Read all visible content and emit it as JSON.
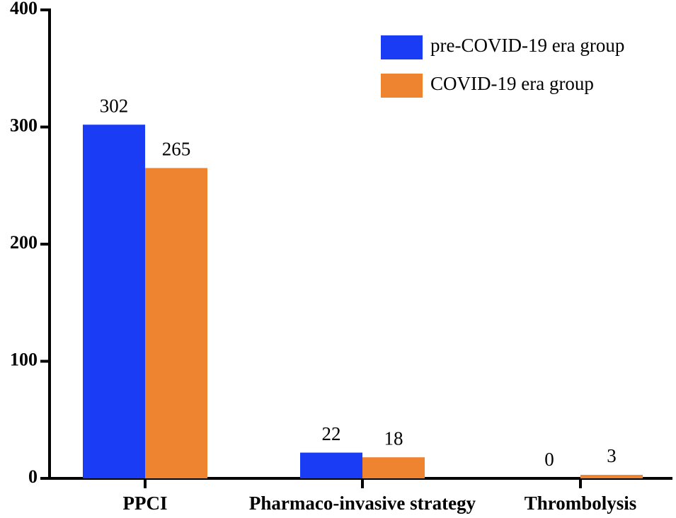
{
  "chart_data": {
    "type": "bar",
    "categories": [
      "PPCI",
      "Pharmaco-invasive strategy",
      "Thrombolysis"
    ],
    "series": [
      {
        "name": "pre-COVID-19 era group",
        "color": "#1b3cf5",
        "values": [
          302,
          22,
          0
        ]
      },
      {
        "name": "COVID-19 era group",
        "color": "#ee8330",
        "values": [
          265,
          18,
          3
        ]
      }
    ],
    "ylim": [
      0,
      400
    ],
    "yticks": [
      0,
      100,
      200,
      300,
      400
    ],
    "legend": "upper right",
    "grid": false
  }
}
